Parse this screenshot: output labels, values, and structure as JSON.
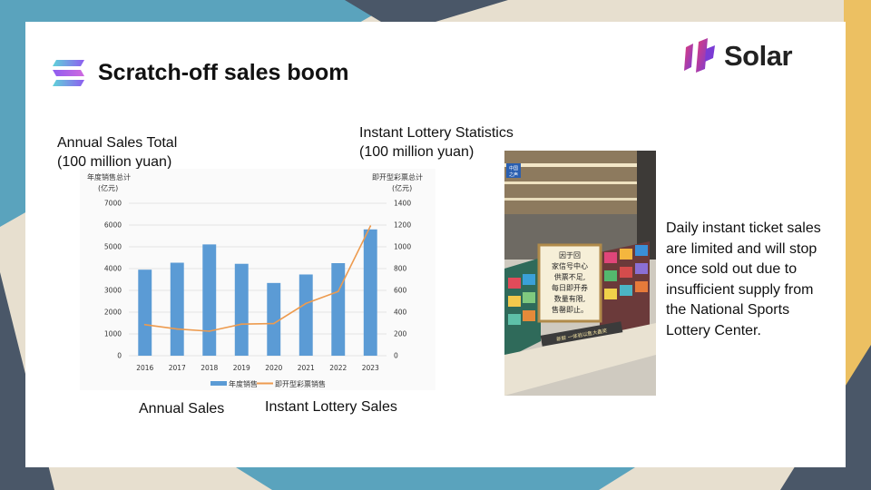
{
  "slide": {
    "title": "Scratch-off sales boom",
    "brand_name": "Solar",
    "left_heading_line1": "Annual Sales Total",
    "left_heading_line2": "(100 million yuan)",
    "right_heading_line1": "Instant Lottery Statistics",
    "right_heading_line2": "(100 million yuan)",
    "caption_annual": "Annual Sales",
    "caption_instant": "Instant Lottery Sales",
    "note": "Daily instant ticket sales are limited and will stop once sold out due to insufficient supply from the National Sports Lottery Center."
  },
  "chart_data": {
    "type": "bar",
    "left_axis_title_line1": "年度销售总计",
    "left_axis_title_line2": "(亿元)",
    "right_axis_title_line1": "即开型彩票总计",
    "right_axis_title_line2": "(亿元)",
    "categories": [
      "2016",
      "2017",
      "2018",
      "2019",
      "2020",
      "2021",
      "2022",
      "2023"
    ],
    "left_ylim": [
      0,
      7000
    ],
    "left_ticks": [
      0,
      1000,
      2000,
      3000,
      4000,
      5000,
      6000,
      7000
    ],
    "right_ylim": [
      0,
      1400
    ],
    "right_ticks": [
      0,
      200,
      400,
      600,
      800,
      1000,
      1200,
      1400
    ],
    "series": [
      {
        "name": "年度销售",
        "kind": "bar",
        "axis": "left",
        "color": "#5b9bd5",
        "values": [
          3950,
          4270,
          5110,
          4220,
          3340,
          3730,
          4250,
          5800
        ]
      },
      {
        "name": "即开型彩票销售",
        "kind": "line",
        "axis": "right",
        "color": "#ed9b4f",
        "values": [
          285,
          245,
          225,
          290,
          295,
          480,
          590,
          1190
        ]
      }
    ],
    "legend_position": "bottom",
    "grid": true
  },
  "photo": {
    "sign_lines": [
      "因于回",
      "家信号中心",
      "供票不足,",
      "每日即开券",
      "数量有限,",
      "售罄即止。"
    ],
    "badge_text": "中国\n之声",
    "counter_text": "新鲜 一体验以售大鑫奖"
  },
  "colors": {
    "teal": "#5aa3bd",
    "slate": "#4a5768",
    "gold": "#ecc062",
    "beige": "#e7dfcf",
    "brand_pink": "#d53a8a",
    "brand_purple": "#7a3fd0"
  },
  "icons": {
    "title": "stripes-icon",
    "brand": "solar-logo-icon"
  }
}
